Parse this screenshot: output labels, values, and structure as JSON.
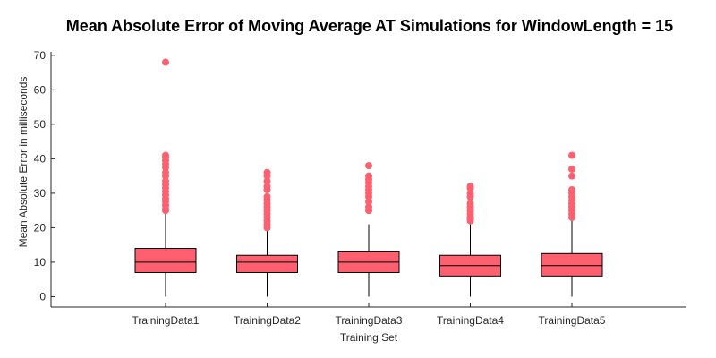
{
  "chart_data": {
    "type": "boxplot",
    "title": "Mean Absolute Error of Moving Average AT Simulations for WindowLength = 15",
    "xlabel": "Training Set",
    "ylabel": "Mean Absolute Error in milliseconds",
    "ylim": [
      -3,
      71
    ],
    "yticks": [
      0,
      10,
      20,
      30,
      40,
      50,
      60,
      70
    ],
    "ytick_labels": [
      "0",
      "10",
      "20",
      "30",
      "40",
      "50",
      "60",
      "70"
    ],
    "categories": [
      "TrainingData1",
      "TrainingData2",
      "TrainingData3",
      "TrainingData4",
      "TrainingData5"
    ],
    "box_color": "#ff6070",
    "outlier_color": "#ff6070",
    "grid": false,
    "boxes": [
      {
        "category": "TrainingData1",
        "whisker_low": 0,
        "q1": 7,
        "median": 10,
        "q3": 14,
        "whisker_high": 24.5,
        "outliers": [
          68,
          41,
          40.5,
          39.5,
          38.5,
          37.5,
          36,
          35,
          33.5,
          32.5,
          31.5,
          30.5,
          29.5,
          28.5,
          27.5,
          26.5,
          25.5,
          25
        ]
      },
      {
        "category": "TrainingData2",
        "whisker_low": 0,
        "q1": 7,
        "median": 10,
        "q3": 12,
        "whisker_high": 19.5,
        "outliers": [
          36,
          35,
          33.5,
          32,
          31,
          29,
          28,
          27,
          26,
          25,
          24,
          23,
          22,
          21,
          20
        ]
      },
      {
        "category": "TrainingData3",
        "whisker_low": 0,
        "q1": 7,
        "median": 10,
        "q3": 13,
        "whisker_high": 21,
        "outliers": [
          38,
          35,
          34,
          33,
          32,
          31,
          30,
          29,
          27.5,
          26,
          25
        ]
      },
      {
        "category": "TrainingData4",
        "whisker_low": 0,
        "q1": 6,
        "median": 9,
        "q3": 12,
        "whisker_high": 21,
        "outliers": [
          32,
          31.5,
          30,
          29,
          27,
          26,
          25,
          24,
          23,
          22.5,
          22
        ]
      },
      {
        "category": "TrainingData5",
        "whisker_low": 0,
        "q1": 6,
        "median": 9,
        "q3": 12.5,
        "whisker_high": 22.5,
        "outliers": [
          41,
          37,
          35,
          31,
          30,
          29,
          28,
          27,
          26,
          25,
          24,
          23
        ]
      }
    ]
  }
}
